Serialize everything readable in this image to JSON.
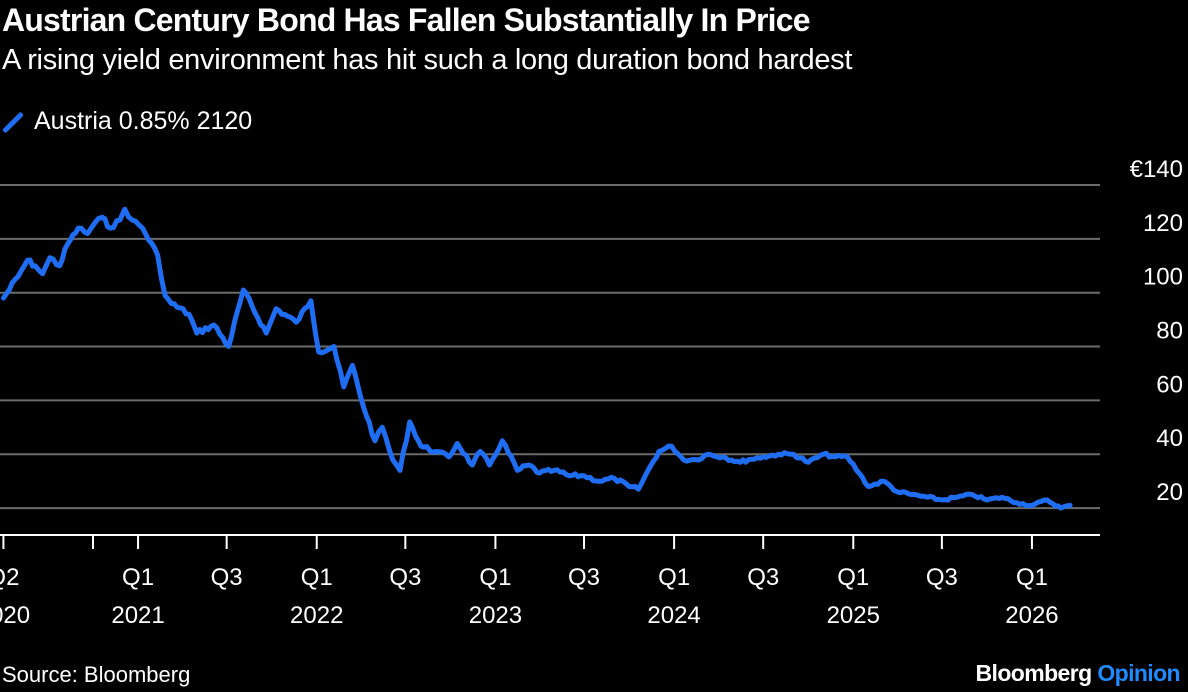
{
  "header": {
    "title": "Austrian Century Bond Has Fallen Substantially In Price",
    "subtitle": "A rising yield environment has hit such a long duration bond hardest"
  },
  "footer": {
    "source": "Source: Bloomberg",
    "brand_main": "Bloomberg",
    "brand_accent": "Opinion"
  },
  "colors": {
    "background": "#000000",
    "line": "#1f6df2",
    "grid": "#6b6b6b",
    "text": "#ffffff",
    "brand_accent": "#1f8bff"
  },
  "chart_data": {
    "type": "line",
    "title": "Austrian Century Bond Has Fallen Substantially In Price",
    "subtitle": "A rising yield environment has hit such a long duration bond hardest",
    "ylim": [
      10,
      140
    ],
    "yticks": [
      20,
      40,
      60,
      80,
      100,
      120,
      140
    ],
    "ytick_labels": [
      "20",
      "40",
      "60",
      "80",
      "100",
      "120",
      "€140"
    ],
    "xlim": [
      "2020-03-25",
      "2026-05-20"
    ],
    "xticks": [
      {
        "date": "2020-04-01",
        "label": [
          "Q2",
          "2020"
        ]
      },
      {
        "date": "2020-10-01",
        "label": [
          "",
          ""
        ]
      },
      {
        "date": "2021-01-01",
        "label": [
          "Q1",
          "2021"
        ]
      },
      {
        "date": "2021-07-01",
        "label": [
          "Q3",
          ""
        ]
      },
      {
        "date": "2022-01-01",
        "label": [
          "Q1",
          "2022"
        ]
      },
      {
        "date": "2022-07-01",
        "label": [
          "Q3",
          ""
        ]
      },
      {
        "date": "2023-01-01",
        "label": [
          "Q1",
          "2023"
        ]
      },
      {
        "date": "2023-07-01",
        "label": [
          "Q3",
          ""
        ]
      },
      {
        "date": "2024-01-01",
        "label": [
          "Q1",
          "2024"
        ]
      },
      {
        "date": "2024-07-01",
        "label": [
          "Q3",
          ""
        ]
      },
      {
        "date": "2025-01-01",
        "label": [
          "Q1",
          "2025"
        ]
      },
      {
        "date": "2025-07-01",
        "label": [
          "Q3",
          ""
        ]
      },
      {
        "date": "2026-01-01",
        "label": [
          "Q1",
          "2026"
        ]
      }
    ],
    "grid": true,
    "legend": "top-left",
    "series": [
      {
        "name": "Austria 0.85% 2120",
        "x": [
          "2020-04-01",
          "2020-05-01",
          "2020-05-20",
          "2020-06-05",
          "2020-06-20",
          "2020-07-05",
          "2020-07-25",
          "2020-08-10",
          "2020-09-01",
          "2020-09-20",
          "2020-10-05",
          "2020-10-20",
          "2020-11-05",
          "2020-11-25",
          "2020-12-05",
          "2020-12-20",
          "2021-01-10",
          "2021-02-10",
          "2021-02-25",
          "2021-03-10",
          "2021-04-15",
          "2021-05-01",
          "2021-06-05",
          "2021-07-05",
          "2021-08-04",
          "2021-09-20",
          "2021-10-10",
          "2021-11-20",
          "2021-12-20",
          "2022-01-05",
          "2022-02-05",
          "2022-02-25",
          "2022-03-15",
          "2022-04-01",
          "2022-04-30",
          "2022-05-15",
          "2022-06-05",
          "2022-06-20",
          "2022-07-10",
          "2022-08-02",
          "2022-09-01",
          "2022-09-28",
          "2022-10-15",
          "2022-11-15",
          "2022-12-01",
          "2022-12-20",
          "2023-01-15",
          "2023-02-15",
          "2023-03-10",
          "2023-04-01",
          "2023-05-01",
          "2023-06-01",
          "2023-07-01",
          "2023-08-01",
          "2023-09-01",
          "2023-10-01",
          "2023-10-20",
          "2023-11-15",
          "2023-12-01",
          "2023-12-27",
          "2024-01-20",
          "2024-02-15",
          "2024-03-10",
          "2024-04-10",
          "2024-05-15",
          "2024-06-01",
          "2024-07-01",
          "2024-08-01",
          "2024-09-01",
          "2024-10-01",
          "2024-11-01",
          "2024-11-25",
          "2024-12-20",
          "2025-01-13",
          "2025-02-01",
          "2025-03-05",
          "2025-04-01",
          "2025-05-01",
          "2025-06-01",
          "2025-07-01",
          "2025-08-01",
          "2025-09-01",
          "2025-10-01",
          "2025-11-01",
          "2025-12-01",
          "2026-01-01",
          "2026-02-01",
          "2026-03-01",
          "2026-03-20"
        ],
        "y": [
          98,
          106,
          112,
          110,
          107,
          113,
          110,
          118,
          124,
          122,
          126,
          128,
          124,
          127,
          131,
          127,
          124,
          114,
          99,
          96,
          92,
          85,
          88,
          80,
          101,
          85,
          94,
          89,
          97,
          78,
          80,
          65,
          73,
          61,
          45,
          50,
          38,
          34,
          52,
          43,
          41,
          39,
          44,
          36,
          41,
          36,
          45,
          34,
          36,
          33,
          34,
          32,
          32,
          30,
          31,
          28,
          27,
          36,
          41,
          43,
          38,
          38,
          40,
          39,
          37,
          38,
          39,
          40,
          40,
          37,
          40,
          39,
          39,
          33,
          28,
          30,
          26,
          25,
          24,
          23,
          24,
          25,
          23,
          24,
          22,
          21,
          23,
          20,
          21
        ]
      }
    ]
  }
}
